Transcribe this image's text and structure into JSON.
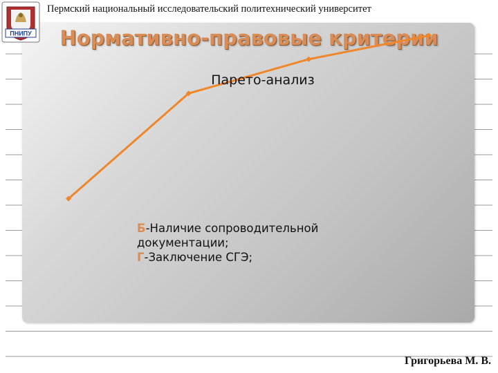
{
  "header": {
    "university": "Пермский национальный исследовательский политехнический университет",
    "logo_text": "ПНИПУ"
  },
  "slide": {
    "title": "Нормативно-правовые критерии",
    "author": "Григорьева М. В."
  },
  "annotation": {
    "lines": [
      {
        "letter": "Б",
        "text": "-Наличие сопроводительной"
      },
      {
        "letter": "",
        "text": "документации;"
      },
      {
        "letter": "Г",
        "text": "-Заключение СГЭ;"
      }
    ]
  },
  "colors": {
    "accent": "#d98c55",
    "line": "#f0862a",
    "panel": "#c8c8c8"
  },
  "chart_data": {
    "type": "line",
    "title": "Парето-анализ",
    "x": [
      1,
      2,
      3,
      4
    ],
    "series": [
      {
        "values": [
          35,
          75,
          88,
          97
        ]
      }
    ],
    "ylim": [
      0,
      100
    ],
    "grid": false,
    "legend": "none"
  }
}
